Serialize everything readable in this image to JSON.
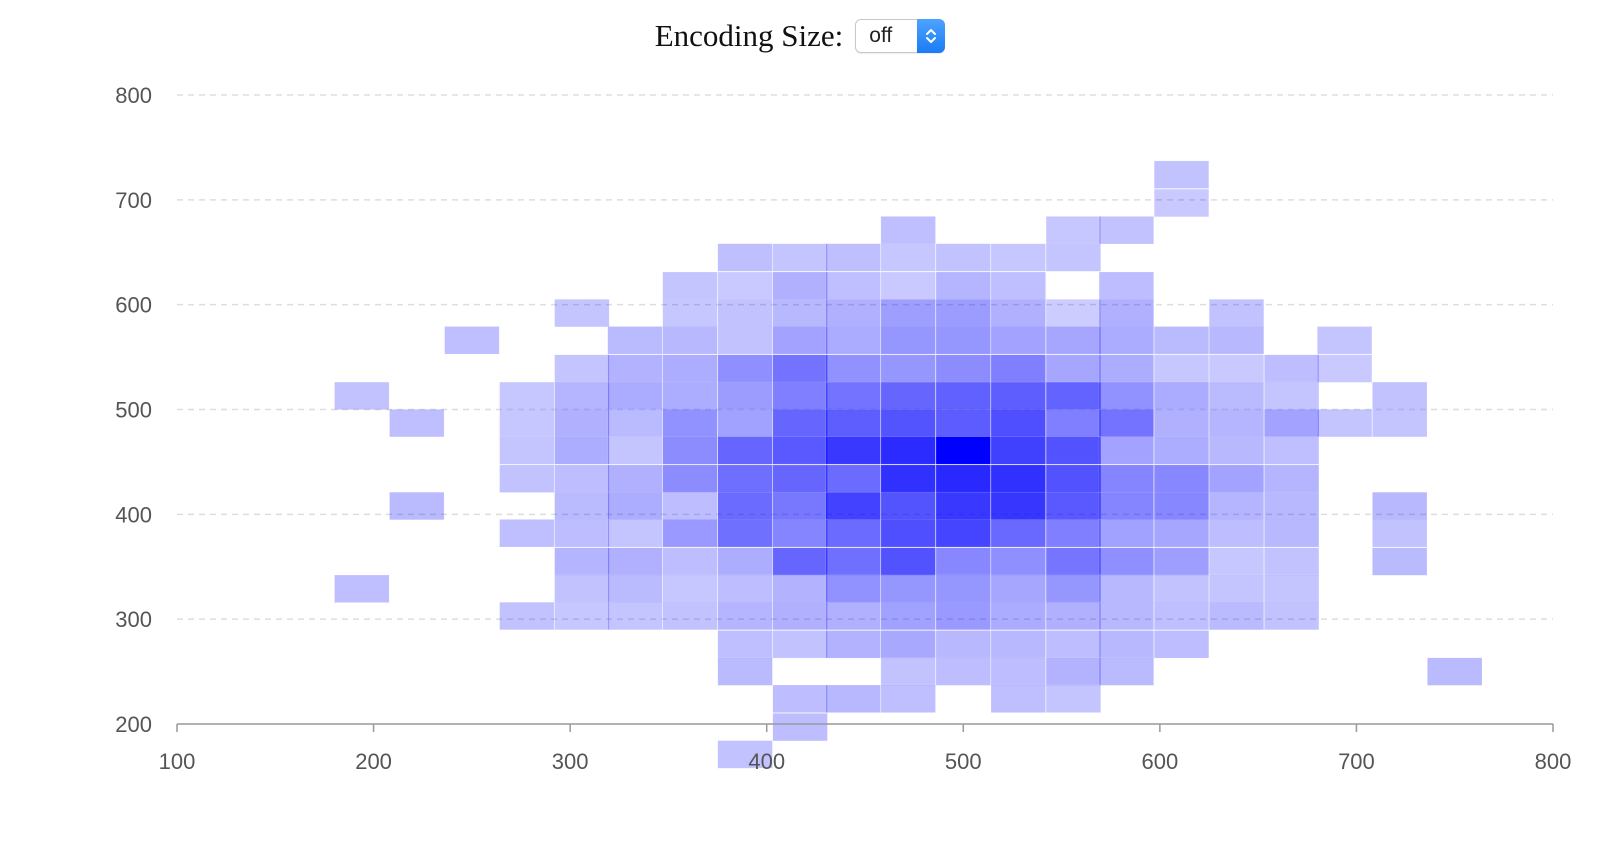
{
  "controls": {
    "encoding_label": "Encoding Size:",
    "encoding_value": "off",
    "arrows_icon": "up-down-chevron-icon"
  },
  "colors": {
    "cell": "#0000ff",
    "grid": "#dddddd",
    "axis": "#999999"
  },
  "chart_data": {
    "type": "heatmap",
    "title": "",
    "xlabel": "",
    "ylabel": "",
    "xlim": [
      100,
      800
    ],
    "ylim": [
      200,
      800
    ],
    "x_ticks": [
      100,
      200,
      300,
      400,
      500,
      600,
      700,
      800
    ],
    "y_ticks": [
      200,
      300,
      400,
      500,
      600,
      700,
      800
    ],
    "y_grid": "dashed",
    "bin_width": 27.78,
    "bin_height": 26.32,
    "value_range": [
      0,
      1
    ],
    "color": "#0000ff",
    "cells": [
      [
        611,
        724,
        0.24
      ],
      [
        611,
        697,
        0.21
      ],
      [
        472,
        671,
        0.25
      ],
      [
        556,
        671,
        0.22
      ],
      [
        583,
        671,
        0.24
      ],
      [
        389,
        645,
        0.25
      ],
      [
        417,
        645,
        0.23
      ],
      [
        444,
        645,
        0.25
      ],
      [
        472,
        645,
        0.22
      ],
      [
        500,
        645,
        0.24
      ],
      [
        528,
        645,
        0.22
      ],
      [
        556,
        645,
        0.23
      ],
      [
        361,
        618,
        0.23
      ],
      [
        389,
        618,
        0.21
      ],
      [
        417,
        618,
        0.31
      ],
      [
        444,
        618,
        0.25
      ],
      [
        472,
        618,
        0.21
      ],
      [
        500,
        618,
        0.29
      ],
      [
        528,
        618,
        0.25
      ],
      [
        583,
        618,
        0.26
      ],
      [
        306,
        592,
        0.23
      ],
      [
        361,
        592,
        0.22
      ],
      [
        389,
        592,
        0.24
      ],
      [
        417,
        592,
        0.28
      ],
      [
        444,
        592,
        0.31
      ],
      [
        472,
        592,
        0.38
      ],
      [
        500,
        592,
        0.39
      ],
      [
        528,
        592,
        0.31
      ],
      [
        556,
        592,
        0.2
      ],
      [
        583,
        592,
        0.31
      ],
      [
        639,
        592,
        0.24
      ],
      [
        250,
        566,
        0.25
      ],
      [
        333,
        566,
        0.27
      ],
      [
        361,
        566,
        0.28
      ],
      [
        389,
        566,
        0.24
      ],
      [
        417,
        566,
        0.36
      ],
      [
        444,
        566,
        0.33
      ],
      [
        472,
        566,
        0.41
      ],
      [
        500,
        566,
        0.41
      ],
      [
        528,
        566,
        0.36
      ],
      [
        556,
        566,
        0.35
      ],
      [
        583,
        566,
        0.33
      ],
      [
        611,
        566,
        0.27
      ],
      [
        639,
        566,
        0.28
      ],
      [
        694,
        566,
        0.23
      ],
      [
        306,
        539,
        0.23
      ],
      [
        333,
        539,
        0.3
      ],
      [
        361,
        539,
        0.32
      ],
      [
        389,
        539,
        0.44
      ],
      [
        417,
        539,
        0.55
      ],
      [
        444,
        539,
        0.43
      ],
      [
        472,
        539,
        0.41
      ],
      [
        500,
        539,
        0.45
      ],
      [
        528,
        539,
        0.5
      ],
      [
        556,
        539,
        0.35
      ],
      [
        583,
        539,
        0.32
      ],
      [
        611,
        539,
        0.22
      ],
      [
        639,
        539,
        0.21
      ],
      [
        667,
        539,
        0.26
      ],
      [
        694,
        539,
        0.21
      ],
      [
        194,
        513,
        0.24
      ],
      [
        278,
        513,
        0.22
      ],
      [
        306,
        513,
        0.29
      ],
      [
        333,
        513,
        0.33
      ],
      [
        361,
        513,
        0.32
      ],
      [
        389,
        513,
        0.39
      ],
      [
        417,
        513,
        0.5
      ],
      [
        444,
        513,
        0.55
      ],
      [
        472,
        513,
        0.6
      ],
      [
        500,
        513,
        0.62
      ],
      [
        528,
        513,
        0.63
      ],
      [
        556,
        513,
        0.61
      ],
      [
        583,
        513,
        0.43
      ],
      [
        611,
        513,
        0.33
      ],
      [
        639,
        513,
        0.27
      ],
      [
        667,
        513,
        0.23
      ],
      [
        722,
        513,
        0.24
      ],
      [
        222,
        487,
        0.25
      ],
      [
        278,
        487,
        0.22
      ],
      [
        306,
        487,
        0.31
      ],
      [
        333,
        487,
        0.27
      ],
      [
        361,
        487,
        0.43
      ],
      [
        389,
        487,
        0.37
      ],
      [
        417,
        487,
        0.6
      ],
      [
        444,
        487,
        0.63
      ],
      [
        472,
        487,
        0.67
      ],
      [
        500,
        487,
        0.64
      ],
      [
        528,
        487,
        0.69
      ],
      [
        556,
        487,
        0.5
      ],
      [
        583,
        487,
        0.55
      ],
      [
        611,
        487,
        0.31
      ],
      [
        639,
        487,
        0.29
      ],
      [
        667,
        487,
        0.36
      ],
      [
        694,
        487,
        0.23
      ],
      [
        722,
        487,
        0.23
      ],
      [
        278,
        461,
        0.23
      ],
      [
        306,
        461,
        0.32
      ],
      [
        333,
        461,
        0.23
      ],
      [
        361,
        461,
        0.45
      ],
      [
        389,
        461,
        0.6
      ],
      [
        417,
        461,
        0.65
      ],
      [
        444,
        461,
        0.78
      ],
      [
        472,
        461,
        0.83
      ],
      [
        500,
        461,
        1.0
      ],
      [
        528,
        461,
        0.75
      ],
      [
        556,
        461,
        0.68
      ],
      [
        583,
        461,
        0.36
      ],
      [
        611,
        461,
        0.32
      ],
      [
        639,
        461,
        0.28
      ],
      [
        667,
        461,
        0.25
      ],
      [
        278,
        434,
        0.24
      ],
      [
        306,
        434,
        0.26
      ],
      [
        333,
        434,
        0.31
      ],
      [
        361,
        434,
        0.45
      ],
      [
        389,
        434,
        0.57
      ],
      [
        417,
        434,
        0.6
      ],
      [
        444,
        434,
        0.58
      ],
      [
        472,
        434,
        0.81
      ],
      [
        500,
        434,
        0.84
      ],
      [
        528,
        434,
        0.81
      ],
      [
        556,
        434,
        0.68
      ],
      [
        583,
        434,
        0.48
      ],
      [
        611,
        434,
        0.47
      ],
      [
        639,
        434,
        0.36
      ],
      [
        667,
        434,
        0.29
      ],
      [
        222,
        408,
        0.27
      ],
      [
        306,
        408,
        0.27
      ],
      [
        333,
        408,
        0.32
      ],
      [
        361,
        408,
        0.26
      ],
      [
        389,
        408,
        0.58
      ],
      [
        417,
        408,
        0.53
      ],
      [
        444,
        408,
        0.74
      ],
      [
        472,
        408,
        0.67
      ],
      [
        500,
        408,
        0.78
      ],
      [
        528,
        408,
        0.79
      ],
      [
        556,
        408,
        0.65
      ],
      [
        583,
        408,
        0.48
      ],
      [
        611,
        408,
        0.47
      ],
      [
        639,
        408,
        0.29
      ],
      [
        667,
        408,
        0.28
      ],
      [
        722,
        408,
        0.28
      ],
      [
        278,
        382,
        0.25
      ],
      [
        306,
        382,
        0.26
      ],
      [
        333,
        382,
        0.23
      ],
      [
        361,
        382,
        0.4
      ],
      [
        389,
        382,
        0.56
      ],
      [
        417,
        382,
        0.48
      ],
      [
        444,
        382,
        0.58
      ],
      [
        472,
        382,
        0.69
      ],
      [
        500,
        382,
        0.73
      ],
      [
        528,
        382,
        0.59
      ],
      [
        556,
        382,
        0.5
      ],
      [
        583,
        382,
        0.37
      ],
      [
        611,
        382,
        0.35
      ],
      [
        639,
        382,
        0.26
      ],
      [
        667,
        382,
        0.28
      ],
      [
        722,
        382,
        0.24
      ],
      [
        306,
        355,
        0.29
      ],
      [
        333,
        355,
        0.31
      ],
      [
        361,
        355,
        0.26
      ],
      [
        389,
        355,
        0.32
      ],
      [
        417,
        355,
        0.6
      ],
      [
        444,
        355,
        0.56
      ],
      [
        472,
        355,
        0.68
      ],
      [
        500,
        355,
        0.47
      ],
      [
        528,
        355,
        0.44
      ],
      [
        556,
        355,
        0.54
      ],
      [
        583,
        355,
        0.44
      ],
      [
        611,
        355,
        0.38
      ],
      [
        639,
        355,
        0.22
      ],
      [
        667,
        355,
        0.24
      ],
      [
        722,
        355,
        0.27
      ],
      [
        194,
        329,
        0.25
      ],
      [
        306,
        329,
        0.24
      ],
      [
        333,
        329,
        0.27
      ],
      [
        361,
        329,
        0.22
      ],
      [
        389,
        329,
        0.26
      ],
      [
        417,
        329,
        0.3
      ],
      [
        444,
        329,
        0.43
      ],
      [
        472,
        329,
        0.41
      ],
      [
        500,
        329,
        0.41
      ],
      [
        528,
        329,
        0.35
      ],
      [
        556,
        329,
        0.41
      ],
      [
        583,
        329,
        0.28
      ],
      [
        611,
        329,
        0.24
      ],
      [
        639,
        329,
        0.23
      ],
      [
        667,
        329,
        0.23
      ],
      [
        278,
        303,
        0.24
      ],
      [
        306,
        303,
        0.22
      ],
      [
        333,
        303,
        0.23
      ],
      [
        361,
        303,
        0.24
      ],
      [
        389,
        303,
        0.29
      ],
      [
        417,
        303,
        0.31
      ],
      [
        444,
        303,
        0.31
      ],
      [
        472,
        303,
        0.37
      ],
      [
        500,
        303,
        0.4
      ],
      [
        528,
        303,
        0.33
      ],
      [
        556,
        303,
        0.31
      ],
      [
        583,
        303,
        0.28
      ],
      [
        611,
        303,
        0.25
      ],
      [
        639,
        303,
        0.27
      ],
      [
        667,
        303,
        0.24
      ],
      [
        389,
        276,
        0.25
      ],
      [
        417,
        276,
        0.24
      ],
      [
        444,
        276,
        0.3
      ],
      [
        472,
        276,
        0.34
      ],
      [
        500,
        276,
        0.28
      ],
      [
        528,
        276,
        0.28
      ],
      [
        556,
        276,
        0.26
      ],
      [
        583,
        276,
        0.28
      ],
      [
        611,
        276,
        0.26
      ],
      [
        389,
        250,
        0.27
      ],
      [
        472,
        250,
        0.24
      ],
      [
        500,
        250,
        0.26
      ],
      [
        528,
        250,
        0.26
      ],
      [
        556,
        250,
        0.3
      ],
      [
        583,
        250,
        0.27
      ],
      [
        750,
        250,
        0.27
      ],
      [
        417,
        224,
        0.26
      ],
      [
        444,
        224,
        0.28
      ],
      [
        472,
        224,
        0.25
      ],
      [
        528,
        224,
        0.25
      ],
      [
        556,
        224,
        0.23
      ],
      [
        417,
        197,
        0.26
      ],
      [
        389,
        171,
        0.24
      ]
    ]
  }
}
